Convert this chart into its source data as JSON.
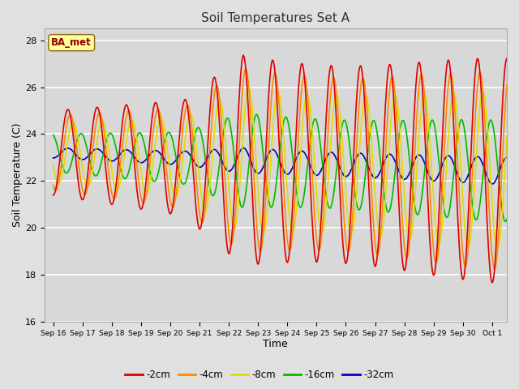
{
  "title": "Soil Temperatures Set A",
  "xlabel": "Time",
  "ylabel": "Soil Temperature (C)",
  "ylim": [
    16,
    28.5
  ],
  "background_color": "#e0e0e0",
  "plot_bg_color": "#d8d8d8",
  "grid_color": "#ffffff",
  "annotation_text": "BA_met",
  "annotation_color": "#8B0000",
  "annotation_bg": "#FFFF99",
  "series": [
    {
      "label": "-2cm",
      "color": "#dd0000"
    },
    {
      "label": "-4cm",
      "color": "#ff8800"
    },
    {
      "label": "-8cm",
      "color": "#dddd00"
    },
    {
      "label": "-16cm",
      "color": "#00bb00"
    },
    {
      "label": "-32cm",
      "color": "#0000bb"
    }
  ],
  "tick_labels": [
    "Sep 16",
    "Sep 17",
    "Sep 18",
    "Sep 19",
    "Sep 20",
    "Sep 21",
    "Sep 22",
    "Sep 23",
    "Sep 24",
    "Sep 25",
    "Sep 26",
    "Sep 27",
    "Sep 28",
    "Sep 29",
    "Sep 30",
    "Oct 1"
  ],
  "tick_positions": [
    0,
    1,
    2,
    3,
    4,
    5,
    6,
    7,
    8,
    9,
    10,
    11,
    12,
    13,
    14,
    15
  ],
  "yticks": [
    16,
    18,
    20,
    22,
    24,
    26,
    28
  ],
  "line_width": 1.2
}
